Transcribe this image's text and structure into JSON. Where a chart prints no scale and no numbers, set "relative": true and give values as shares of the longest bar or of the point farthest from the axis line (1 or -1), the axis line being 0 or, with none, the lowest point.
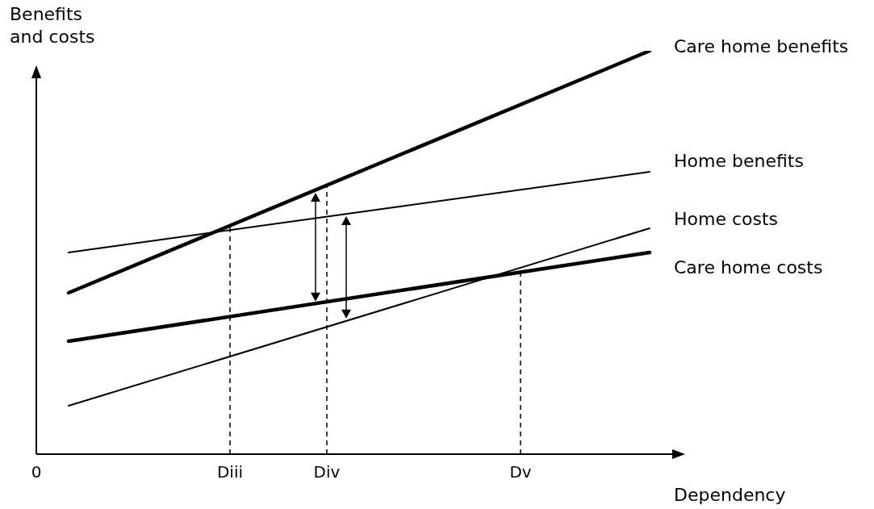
{
  "chart_data": {
    "type": "line",
    "xlabel": "Dependency",
    "ylabel": "Benefits and costs",
    "relative": true,
    "categories": [
      "0",
      null,
      null,
      null,
      null,
      null,
      "Diii",
      null,
      null,
      "Div",
      null,
      null,
      null,
      null,
      null,
      "Dv",
      null,
      null,
      null,
      null,
      null
    ],
    "legend": false,
    "grid": false,
    "marker": "none",
    "line_style": "solid",
    "series": [
      {
        "name": "Care home benefits",
        "color": "#000000",
        "values": [
          null,
          0.4,
          null,
          null,
          null,
          null,
          null,
          null,
          null,
          null,
          null,
          null,
          null,
          null,
          null,
          null,
          null,
          null,
          null,
          1,
          null
        ]
      },
      {
        "name": "Home benefits",
        "color": "#000000",
        "values": [
          null,
          0.5,
          null,
          null,
          null,
          null,
          null,
          null,
          null,
          null,
          null,
          null,
          null,
          null,
          null,
          null,
          null,
          null,
          null,
          0.7,
          null
        ]
      },
      {
        "name": "Home costs",
        "color": "#000000",
        "values": [
          null,
          0.12,
          null,
          null,
          null,
          null,
          null,
          null,
          null,
          null,
          null,
          null,
          null,
          null,
          null,
          null,
          null,
          null,
          null,
          0.56,
          null
        ]
      },
      {
        "name": "Care home costs",
        "color": "#000000",
        "values": [
          null,
          0.28,
          null,
          null,
          null,
          null,
          null,
          null,
          null,
          null,
          null,
          null,
          null,
          null,
          null,
          null,
          null,
          null,
          null,
          0.5,
          null
        ]
      }
    ],
    "ref_lines": [
      {
        "axis": "x",
        "value": "Diii",
        "line_style": "dashed"
      },
      {
        "axis": "x",
        "value": "Div",
        "line_style": "dashed"
      },
      {
        "axis": "x",
        "value": "Dv",
        "line_style": "dashed"
      }
    ]
  }
}
